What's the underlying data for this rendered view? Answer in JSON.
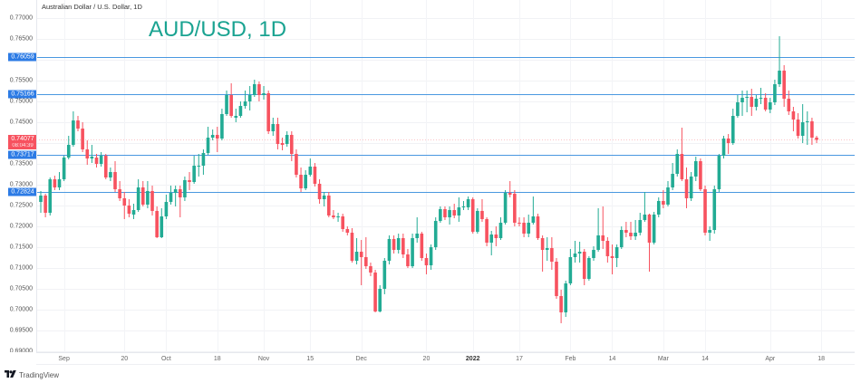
{
  "header": {
    "symbol_description": "Australian Dollar / U.S. Dollar, 1D",
    "overlay_title": "AUD/USD, 1D"
  },
  "footer": {
    "brand": "TradingView",
    "brand_icon": "tradingview-logo-icon"
  },
  "theme": {
    "up_color": "#22ab94",
    "down_color": "#f7525f",
    "level_line_color": "#4a98e0",
    "level_label_bg": "#2c7be5",
    "last_price_bg": "#f7525f",
    "title_color": "#1aa391"
  },
  "chart_data": {
    "type": "candlestick",
    "title": "AUD/USD, 1D",
    "subtitle": "Australian Dollar / U.S. Dollar, 1D",
    "xlabel": "",
    "ylabel": "",
    "ylim": [
      0.68978,
      0.77435
    ],
    "grid": true,
    "legend": "none",
    "y_ticks": [
      "0.77000",
      "0.76500",
      "0.75500",
      "0.75000",
      "0.74500",
      "0.73500",
      "0.73000",
      "0.72500",
      "0.72000",
      "0.71500",
      "0.71000",
      "0.70500",
      "0.70000",
      "0.69500",
      "0.69000"
    ],
    "x_ticks": [
      {
        "label": "Sep",
        "bar": 5
      },
      {
        "label": "20",
        "bar": 18
      },
      {
        "label": "Oct",
        "bar": 27
      },
      {
        "label": "18",
        "bar": 38
      },
      {
        "label": "Nov",
        "bar": 48
      },
      {
        "label": "15",
        "bar": 58
      },
      {
        "label": "Dec",
        "bar": 69
      },
      {
        "label": "20",
        "bar": 83
      },
      {
        "label": "2022",
        "bar": 93,
        "bold": true
      },
      {
        "label": "17",
        "bar": 103
      },
      {
        "label": "Feb",
        "bar": 114
      },
      {
        "label": "14",
        "bar": 123
      },
      {
        "label": "Mar",
        "bar": 134
      },
      {
        "label": "14",
        "bar": 143
      },
      {
        "label": "Apr",
        "bar": 157
      },
      {
        "label": "18",
        "bar": 168
      }
    ],
    "levels": [
      {
        "price": "0.76059"
      },
      {
        "price": "0.75166"
      },
      {
        "price": "0.73717"
      },
      {
        "price": "0.72824"
      }
    ],
    "last_price": {
      "value": "0.74077",
      "countdown": "08:04:39"
    },
    "ohlc_fields": [
      "open",
      "high",
      "low",
      "close"
    ],
    "candles": [
      [
        0.72587,
        0.72848,
        0.72326,
        0.72739
      ],
      [
        0.72739,
        0.72783,
        0.72217,
        0.72326
      ],
      [
        0.72326,
        0.73174,
        0.72261,
        0.7313
      ],
      [
        0.7313,
        0.73217,
        0.7287,
        0.72935
      ],
      [
        0.72935,
        0.73304,
        0.7287,
        0.7313
      ],
      [
        0.7313,
        0.73696,
        0.73087,
        0.73652
      ],
      [
        0.73652,
        0.74174,
        0.73609,
        0.73957
      ],
      [
        0.73957,
        0.74761,
        0.73913,
        0.74543
      ],
      [
        0.74543,
        0.74652,
        0.74283,
        0.74348
      ],
      [
        0.74348,
        0.745,
        0.73783,
        0.73848
      ],
      [
        0.73848,
        0.74065,
        0.73478,
        0.7363
      ],
      [
        0.7363,
        0.73957,
        0.73522,
        0.73674
      ],
      [
        0.73652,
        0.73739,
        0.73413,
        0.735
      ],
      [
        0.735,
        0.73783,
        0.73435,
        0.73696
      ],
      [
        0.73696,
        0.73739,
        0.7313,
        0.73174
      ],
      [
        0.73174,
        0.73413,
        0.73087,
        0.73304
      ],
      [
        0.73304,
        0.73565,
        0.72826,
        0.72891
      ],
      [
        0.72891,
        0.73087,
        0.72609,
        0.72674
      ],
      [
        0.72674,
        0.72826,
        0.72174,
        0.725
      ],
      [
        0.725,
        0.72652,
        0.72217,
        0.72304
      ],
      [
        0.72283,
        0.72543,
        0.72174,
        0.72391
      ],
      [
        0.72391,
        0.7313,
        0.72348,
        0.72935
      ],
      [
        0.72935,
        0.73087,
        0.72478,
        0.72522
      ],
      [
        0.72522,
        0.73087,
        0.72435,
        0.72848
      ],
      [
        0.72848,
        0.72978,
        0.72261,
        0.7237
      ],
      [
        0.7237,
        0.72478,
        0.71717,
        0.71739
      ],
      [
        0.71739,
        0.72435,
        0.71717,
        0.72239
      ],
      [
        0.72239,
        0.72761,
        0.72174,
        0.72587
      ],
      [
        0.72587,
        0.72978,
        0.72522,
        0.72804
      ],
      [
        0.72804,
        0.72978,
        0.72478,
        0.72891
      ],
      [
        0.72891,
        0.72978,
        0.72217,
        0.72696
      ],
      [
        0.72696,
        0.73196,
        0.72609,
        0.73109
      ],
      [
        0.73109,
        0.73304,
        0.7287,
        0.73065
      ],
      [
        0.73065,
        0.73696,
        0.73022,
        0.73457
      ],
      [
        0.73435,
        0.73739,
        0.73196,
        0.73457
      ],
      [
        0.73457,
        0.73848,
        0.73239,
        0.73761
      ],
      [
        0.73761,
        0.74391,
        0.73717,
        0.7413
      ],
      [
        0.7413,
        0.74326,
        0.74065,
        0.74196
      ],
      [
        0.74196,
        0.74391,
        0.73783,
        0.74109
      ],
      [
        0.74109,
        0.74826,
        0.74065,
        0.74696
      ],
      [
        0.74696,
        0.75261,
        0.74652,
        0.75152
      ],
      [
        0.75152,
        0.75435,
        0.74609,
        0.74652
      ],
      [
        0.74609,
        0.74826,
        0.745,
        0.74652
      ],
      [
        0.74652,
        0.75,
        0.74609,
        0.74891
      ],
      [
        0.74891,
        0.75261,
        0.74826,
        0.75
      ],
      [
        0.75,
        0.7537,
        0.74783,
        0.75152
      ],
      [
        0.75152,
        0.75522,
        0.75109,
        0.75413
      ],
      [
        0.75413,
        0.75478,
        0.75,
        0.75152
      ],
      [
        0.75152,
        0.7537,
        0.75043,
        0.75196
      ],
      [
        0.75196,
        0.75261,
        0.74217,
        0.74283
      ],
      [
        0.74283,
        0.74609,
        0.74174,
        0.74457
      ],
      [
        0.74457,
        0.74609,
        0.73848,
        0.73978
      ],
      [
        0.74,
        0.7413,
        0.73826,
        0.73957
      ],
      [
        0.73978,
        0.74283,
        0.73913,
        0.74196
      ],
      [
        0.74196,
        0.74283,
        0.73565,
        0.73739
      ],
      [
        0.73739,
        0.73848,
        0.73174,
        0.73239
      ],
      [
        0.73239,
        0.73413,
        0.72826,
        0.72913
      ],
      [
        0.72913,
        0.73348,
        0.7287,
        0.73239
      ],
      [
        0.73239,
        0.7363,
        0.73196,
        0.73435
      ],
      [
        0.73435,
        0.73522,
        0.72957,
        0.73022
      ],
      [
        0.73022,
        0.7313,
        0.72543,
        0.72652
      ],
      [
        0.72652,
        0.72826,
        0.72478,
        0.72739
      ],
      [
        0.72739,
        0.72826,
        0.72217,
        0.72261
      ],
      [
        0.72261,
        0.72391,
        0.72174,
        0.72217
      ],
      [
        0.72217,
        0.72326,
        0.72109,
        0.72239
      ],
      [
        0.72239,
        0.72304,
        0.7187,
        0.71935
      ],
      [
        0.71935,
        0.72,
        0.71783,
        0.71848
      ],
      [
        0.71848,
        0.71957,
        0.7113,
        0.71174
      ],
      [
        0.71174,
        0.71717,
        0.71087,
        0.71391
      ],
      [
        0.71391,
        0.71674,
        0.70587,
        0.71261
      ],
      [
        0.71261,
        0.71739,
        0.70978,
        0.71043
      ],
      [
        0.71043,
        0.7113,
        0.70804,
        0.70891
      ],
      [
        0.70891,
        0.70957,
        0.69935,
        0.69957
      ],
      [
        0.69957,
        0.70587,
        0.69935,
        0.705
      ],
      [
        0.705,
        0.71239,
        0.7037,
        0.71174
      ],
      [
        0.71174,
        0.71783,
        0.71087,
        0.71696
      ],
      [
        0.71696,
        0.71783,
        0.71348,
        0.71435
      ],
      [
        0.71435,
        0.71826,
        0.71348,
        0.71717
      ],
      [
        0.71717,
        0.71826,
        0.71239,
        0.71326
      ],
      [
        0.71326,
        0.71457,
        0.71,
        0.71043
      ],
      [
        0.71043,
        0.71826,
        0.71,
        0.71717
      ],
      [
        0.71717,
        0.72217,
        0.71609,
        0.71826
      ],
      [
        0.71826,
        0.7187,
        0.71174,
        0.71239
      ],
      [
        0.71239,
        0.71348,
        0.70848,
        0.71065
      ],
      [
        0.71065,
        0.71565,
        0.70957,
        0.715
      ],
      [
        0.715,
        0.72217,
        0.71435,
        0.7213
      ],
      [
        0.7213,
        0.72478,
        0.72087,
        0.72413
      ],
      [
        0.72413,
        0.72478,
        0.72152,
        0.72217
      ],
      [
        0.72217,
        0.72478,
        0.72043,
        0.72391
      ],
      [
        0.72391,
        0.72543,
        0.72196,
        0.72261
      ],
      [
        0.72261,
        0.72696,
        0.72109,
        0.72457
      ],
      [
        0.72457,
        0.72609,
        0.72391,
        0.72478
      ],
      [
        0.72457,
        0.72717,
        0.72391,
        0.72652
      ],
      [
        0.72652,
        0.72696,
        0.71826,
        0.7187
      ],
      [
        0.7187,
        0.72435,
        0.71826,
        0.7237
      ],
      [
        0.7237,
        0.72652,
        0.72109,
        0.72174
      ],
      [
        0.72174,
        0.72217,
        0.71522,
        0.71609
      ],
      [
        0.71609,
        0.71891,
        0.71304,
        0.71804
      ],
      [
        0.71804,
        0.72,
        0.71522,
        0.71717
      ],
      [
        0.71717,
        0.72217,
        0.71674,
        0.72087
      ],
      [
        0.72087,
        0.7287,
        0.72043,
        0.72804
      ],
      [
        0.72804,
        0.73087,
        0.72696,
        0.72761
      ],
      [
        0.72783,
        0.7287,
        0.72,
        0.72087
      ],
      [
        0.72087,
        0.72217,
        0.72,
        0.72065
      ],
      [
        0.72087,
        0.72217,
        0.71739,
        0.71826
      ],
      [
        0.71826,
        0.72283,
        0.71739,
        0.72087
      ],
      [
        0.72087,
        0.72717,
        0.72043,
        0.72239
      ],
      [
        0.72239,
        0.72304,
        0.71674,
        0.71717
      ],
      [
        0.71717,
        0.71783,
        0.70913,
        0.71435
      ],
      [
        0.71435,
        0.71739,
        0.71174,
        0.71478
      ],
      [
        0.71478,
        0.71739,
        0.70957,
        0.71152
      ],
      [
        0.71152,
        0.71239,
        0.70261,
        0.70326
      ],
      [
        0.70326,
        0.70478,
        0.69674,
        0.69935
      ],
      [
        0.69935,
        0.70696,
        0.69826,
        0.7063
      ],
      [
        0.7063,
        0.71457,
        0.70587,
        0.71261
      ],
      [
        0.71261,
        0.71652,
        0.7113,
        0.71348
      ],
      [
        0.71348,
        0.71631,
        0.7113,
        0.71391
      ],
      [
        0.71391,
        0.71457,
        0.70587,
        0.70739
      ],
      [
        0.70739,
        0.71283,
        0.70696,
        0.71239
      ],
      [
        0.71239,
        0.71522,
        0.71174,
        0.71435
      ],
      [
        0.71435,
        0.72435,
        0.71391,
        0.71783
      ],
      [
        0.71783,
        0.72478,
        0.71457,
        0.71652
      ],
      [
        0.71652,
        0.71739,
        0.7113,
        0.71283
      ],
      [
        0.71283,
        0.71565,
        0.70848,
        0.71239
      ],
      [
        0.71239,
        0.71565,
        0.71022,
        0.715
      ],
      [
        0.715,
        0.72,
        0.71457,
        0.71913
      ],
      [
        0.71913,
        0.72109,
        0.71739,
        0.71848
      ],
      [
        0.71848,
        0.72109,
        0.71674,
        0.71761
      ],
      [
        0.71761,
        0.72152,
        0.71674,
        0.71848
      ],
      [
        0.71848,
        0.72326,
        0.71783,
        0.72152
      ],
      [
        0.72152,
        0.72826,
        0.72109,
        0.72283
      ],
      [
        0.72283,
        0.72304,
        0.70913,
        0.71609
      ],
      [
        0.71609,
        0.72348,
        0.71565,
        0.72283
      ],
      [
        0.72283,
        0.72696,
        0.72217,
        0.72609
      ],
      [
        0.72609,
        0.7287,
        0.72435,
        0.72522
      ],
      [
        0.72522,
        0.73087,
        0.72478,
        0.72935
      ],
      [
        0.72935,
        0.73522,
        0.7287,
        0.73261
      ],
      [
        0.73261,
        0.73848,
        0.73196,
        0.73739
      ],
      [
        0.73739,
        0.7437,
        0.73087,
        0.7313
      ],
      [
        0.7313,
        0.73413,
        0.72435,
        0.72674
      ],
      [
        0.72674,
        0.73304,
        0.72609,
        0.73196
      ],
      [
        0.73196,
        0.73674,
        0.73087,
        0.73565
      ],
      [
        0.73565,
        0.7363,
        0.72848,
        0.72891
      ],
      [
        0.72891,
        0.72978,
        0.71783,
        0.71848
      ],
      [
        0.71848,
        0.72,
        0.71652,
        0.71913
      ],
      [
        0.71913,
        0.72978,
        0.71826,
        0.72891
      ],
      [
        0.72891,
        0.73739,
        0.72826,
        0.73696
      ],
      [
        0.73696,
        0.74174,
        0.7363,
        0.74109
      ],
      [
        0.74109,
        0.74217,
        0.73739,
        0.74
      ],
      [
        0.74,
        0.74826,
        0.73957,
        0.74652
      ],
      [
        0.74652,
        0.75152,
        0.74609,
        0.74978
      ],
      [
        0.74978,
        0.75261,
        0.74652,
        0.75087
      ],
      [
        0.75087,
        0.75261,
        0.74739,
        0.75109
      ],
      [
        0.75109,
        0.75304,
        0.74652,
        0.7487
      ],
      [
        0.7487,
        0.75152,
        0.74783,
        0.75065
      ],
      [
        0.75065,
        0.75326,
        0.74935,
        0.75087
      ],
      [
        0.75087,
        0.75196,
        0.74761,
        0.74804
      ],
      [
        0.74804,
        0.75087,
        0.74717,
        0.74978
      ],
      [
        0.74978,
        0.75522,
        0.74913,
        0.75413
      ],
      [
        0.75413,
        0.76565,
        0.75348,
        0.75739
      ],
      [
        0.75739,
        0.7587,
        0.7487,
        0.75065
      ],
      [
        0.75065,
        0.75261,
        0.74674,
        0.74761
      ],
      [
        0.74761,
        0.7487,
        0.74283,
        0.74565
      ],
      [
        0.74565,
        0.74717,
        0.74109,
        0.74174
      ],
      [
        0.74174,
        0.74935,
        0.74,
        0.745
      ],
      [
        0.745,
        0.74761,
        0.73957,
        0.74522
      ],
      [
        0.74522,
        0.74609,
        0.73957,
        0.7413
      ],
      [
        0.7413,
        0.74174,
        0.74,
        0.74077
      ]
    ]
  }
}
